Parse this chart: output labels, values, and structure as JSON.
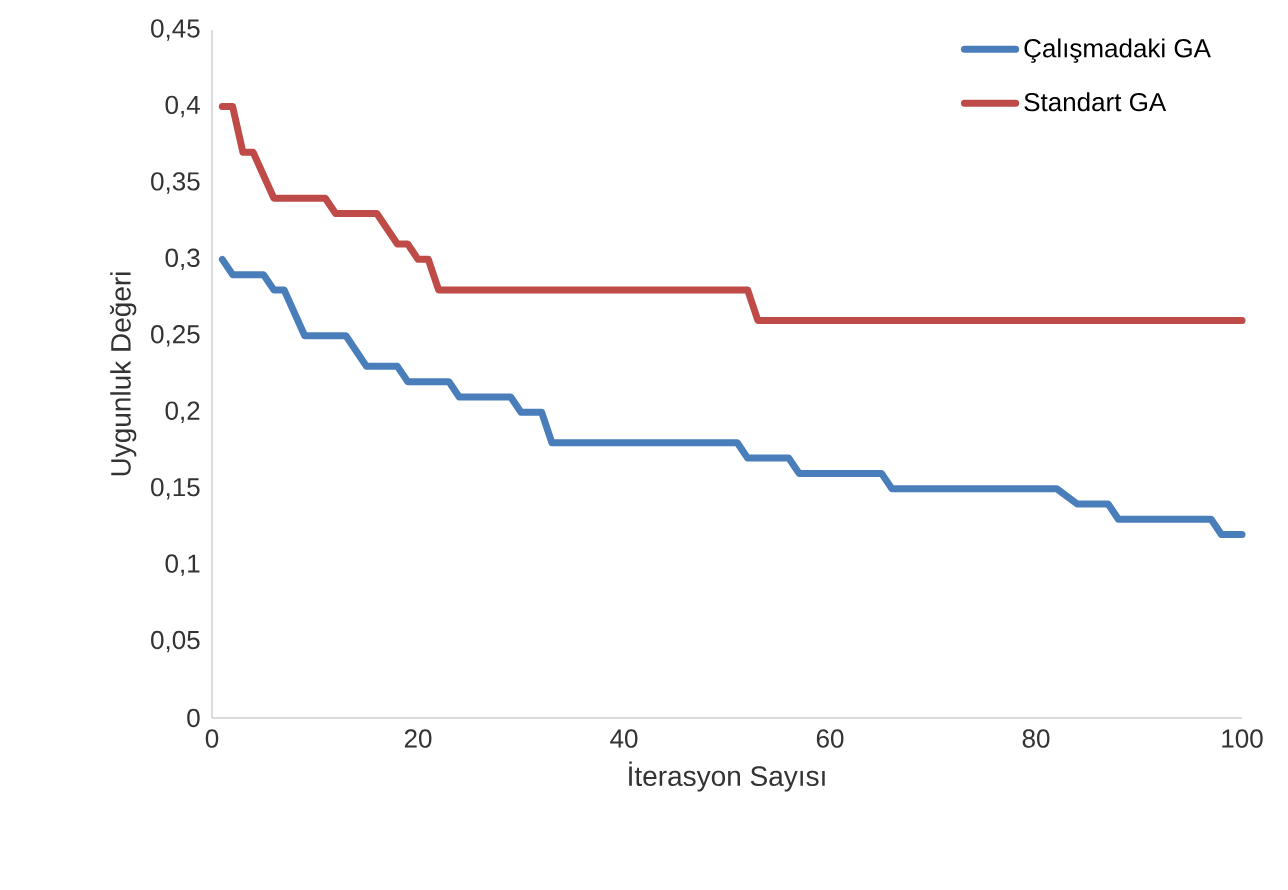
{
  "chart_data": {
    "type": "line",
    "xlabel": "İterasyon Sayısı",
    "ylabel": "Uygunluk Değeri",
    "series": [
      {
        "name": "Çalışmadaki GA",
        "color": "#4a7ebb",
        "x": [
          1,
          2,
          5,
          6,
          7,
          9,
          13,
          15,
          18,
          19,
          23,
          24,
          29,
          30,
          32,
          33,
          51,
          52,
          56,
          57,
          65,
          66,
          82,
          84,
          87,
          88,
          97,
          98,
          100
        ],
        "values": [
          0.3,
          0.29,
          0.29,
          0.28,
          0.28,
          0.25,
          0.25,
          0.23,
          0.23,
          0.22,
          0.22,
          0.21,
          0.21,
          0.2,
          0.2,
          0.18,
          0.18,
          0.17,
          0.17,
          0.16,
          0.16,
          0.15,
          0.15,
          0.14,
          0.14,
          0.13,
          0.13,
          0.12,
          0.12
        ]
      },
      {
        "name": "Standart GA",
        "color": "#be4b48",
        "x": [
          1,
          2,
          3,
          4,
          6,
          11,
          12,
          16,
          18,
          19,
          20,
          21,
          22,
          52,
          53,
          100
        ],
        "values": [
          0.4,
          0.4,
          0.37,
          0.37,
          0.34,
          0.34,
          0.33,
          0.33,
          0.31,
          0.31,
          0.3,
          0.3,
          0.28,
          0.28,
          0.26,
          0.26
        ]
      }
    ],
    "xlim": [
      0,
      100
    ],
    "xticks": [
      0,
      20,
      40,
      60,
      80,
      100
    ],
    "ylim": [
      0,
      0.45
    ],
    "yticks": [
      0,
      {
        "value": 0.05,
        "label": "0,05"
      },
      {
        "value": 0.1,
        "label": "0,1"
      },
      {
        "value": 0.15,
        "label": "0,15"
      },
      {
        "value": 0.2,
        "label": "0,2"
      },
      {
        "value": 0.25,
        "label": "0,25"
      },
      {
        "value": 0.3,
        "label": "0,3"
      },
      {
        "value": 0.35,
        "label": "0,35"
      },
      {
        "value": 0.4,
        "label": "0,4"
      },
      {
        "value": 0.45,
        "label": "0,45"
      }
    ],
    "legend": "top right",
    "marker": "none",
    "line_style": "solid"
  }
}
